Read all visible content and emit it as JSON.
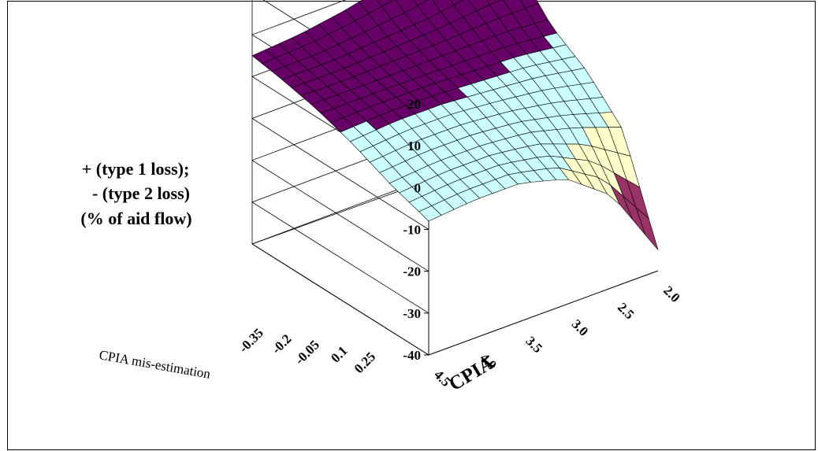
{
  "chart_data": {
    "type": "surface3d",
    "title": "",
    "zlabel_lines": [
      "+ (type 1 loss);",
      "- (type 2 loss)",
      "(% of aid flow)"
    ],
    "xlabel": "CPIA",
    "ylabel": "CPIA mis-estimation",
    "x_ticks": [
      "2.0",
      "2.5",
      "3.0",
      "3.5",
      "4.0",
      "4.5"
    ],
    "y_ticks": [
      "-0.35",
      "-0.2",
      "-0.05",
      "0.1",
      "0.25"
    ],
    "z_ticks": [
      "20",
      "10",
      "0",
      "-10",
      "-20",
      "-30",
      "-40"
    ],
    "zlim": [
      -40,
      20
    ],
    "x_range": [
      2.0,
      4.5
    ],
    "y_range": [
      -0.35,
      0.35
    ],
    "grid": true,
    "band_colors": [
      {
        "range": [
          -40,
          -30
        ],
        "color": "#9999ff"
      },
      {
        "range": [
          -30,
          -20
        ],
        "color": "#993366"
      },
      {
        "range": [
          -20,
          -10
        ],
        "color": "#ffffcc"
      },
      {
        "range": [
          -10,
          0
        ],
        "color": "#ccffff"
      },
      {
        "range": [
          0,
          10
        ],
        "color": "#660066"
      },
      {
        "range": [
          10,
          20
        ],
        "color": "#ff8080"
      },
      {
        "range": [
          20,
          30
        ],
        "color": "#ff8080"
      }
    ],
    "surface_rows_x": [
      2.0,
      2.5,
      3.0,
      3.5,
      4.0,
      4.5
    ],
    "surface_cols_y": [
      -0.35,
      -0.2,
      -0.05,
      0.1,
      0.25,
      0.35
    ],
    "surface_z": [
      [
        -35,
        -12,
        -4,
        1,
        10,
        25
      ],
      [
        -18,
        -8,
        -2,
        2,
        8,
        16
      ],
      [
        -10,
        -5,
        -1,
        2,
        6,
        11
      ],
      [
        -7,
        -4,
        0,
        2,
        5,
        8
      ],
      [
        -7,
        -4,
        0,
        2,
        4,
        6
      ],
      [
        -8,
        -5,
        -1,
        2,
        4,
        5
      ]
    ]
  }
}
